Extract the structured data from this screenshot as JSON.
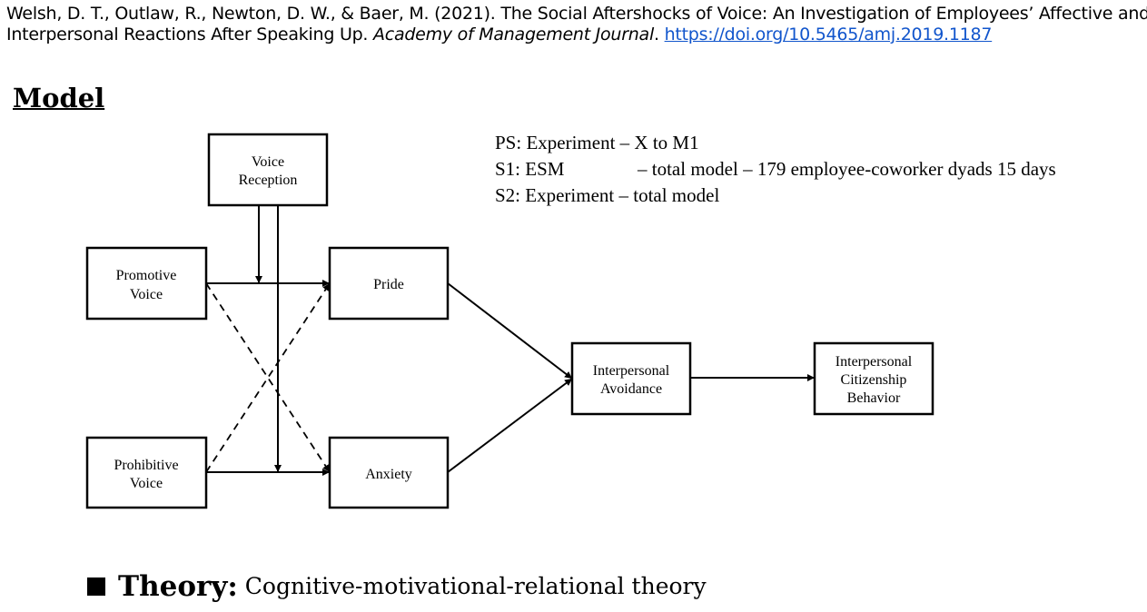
{
  "citation": {
    "authors_year_title": "Welsh, D. T., Outlaw, R., Newton, D. W., & Baer, M. (2021). The Social Aftershocks of Voice: An Investigation of Employees’ Affective and",
    "title_cont": "Interpersonal Reactions After Speaking Up.",
    "journal": "Academy of Management Journal",
    "doi_link": "https://doi.org/10.5465/amj.2019.1187"
  },
  "heading": "Model",
  "studies": [
    {
      "label": "PS: Experiment",
      "desc": "– X to M1"
    },
    {
      "label": "S1: ESM",
      "desc": "– total model – 179 employee-coworker dyads 15 days"
    },
    {
      "label": "S2: Experiment",
      "desc": "– total model"
    }
  ],
  "diagram": {
    "nodes": {
      "voice_reception": [
        "Voice",
        "Reception"
      ],
      "promotive_voice": [
        "Promotive",
        "Voice"
      ],
      "prohibitive_voice": [
        "Prohibitive",
        "Voice"
      ],
      "pride": [
        "Pride"
      ],
      "anxiety": [
        "Anxiety"
      ],
      "interpersonal_avoidance": [
        "Interpersonal",
        "Avoidance"
      ],
      "interpersonal_citizenship_behavior": [
        "Interpersonal",
        "Citizenship",
        "Behavior"
      ]
    }
  },
  "theory": {
    "label": "Theory:",
    "value": "Cognitive-motivational-relational theory"
  }
}
